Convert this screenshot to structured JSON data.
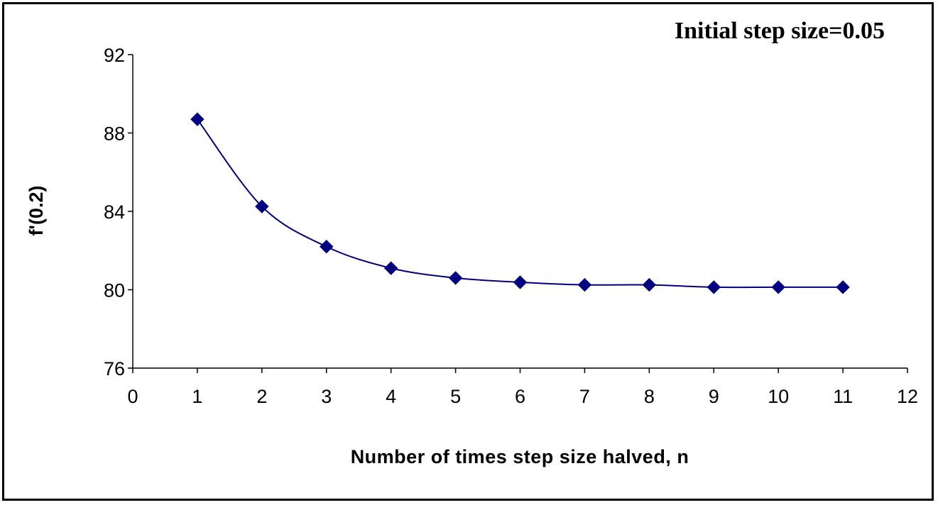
{
  "chart_data": {
    "type": "line",
    "annotation": "Initial step size=0.05",
    "xlabel": "Number of times step size halved, n",
    "ylabel": "f'(0.2)",
    "xlim": [
      0,
      12
    ],
    "ylim": [
      76,
      92
    ],
    "x_ticks": [
      0,
      1,
      2,
      3,
      4,
      5,
      6,
      7,
      8,
      9,
      10,
      11,
      12
    ],
    "y_ticks": [
      76,
      80,
      84,
      88,
      92
    ],
    "grid": false,
    "legend": "none",
    "smoothed": true,
    "series": [
      {
        "color": "#000080",
        "marker": "diamond",
        "x": [
          1,
          2,
          3,
          4,
          5,
          6,
          7,
          8,
          9,
          10,
          11
        ],
        "y": [
          88.7,
          84.25,
          82.2,
          81.1,
          80.6,
          80.38,
          80.25,
          80.25,
          80.13,
          80.13,
          80.13
        ]
      }
    ]
  }
}
